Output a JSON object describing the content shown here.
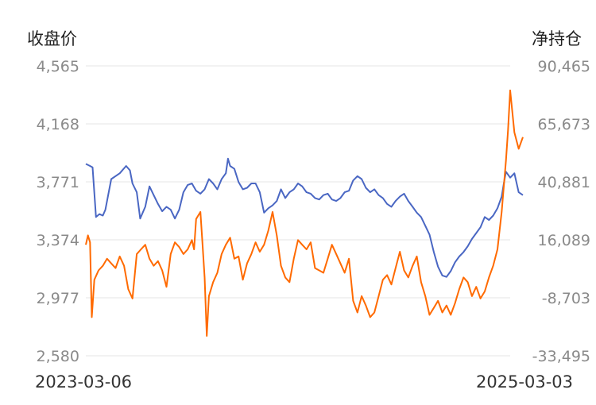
{
  "chart_data": {
    "type": "line",
    "left_axis_title": "收盘价",
    "right_axis_title": "净持仓",
    "y_left": {
      "min": 2580,
      "max": 4565,
      "ticks": [
        "4,565",
        "4,168",
        "3,771",
        "3,374",
        "2,977",
        "2,580"
      ]
    },
    "y_right": {
      "min": -33495,
      "max": 90465,
      "ticks": [
        "90,465",
        "65,673",
        "40,881",
        "16,089",
        "-8,703",
        "-33,495"
      ]
    },
    "x_range": [
      "2023-03-06",
      "2025-03-03"
    ],
    "grid": true,
    "colors": {
      "close": "#4a67c3",
      "net_position": "#ff6a00"
    },
    "series": [
      {
        "axis": "left",
        "color": "#4a67c3",
        "points": [
          [
            0,
            3894
          ],
          [
            0.01,
            3880
          ],
          [
            0.016,
            3870
          ],
          [
            0.024,
            3530
          ],
          [
            0.032,
            3550
          ],
          [
            0.04,
            3540
          ],
          [
            0.046,
            3580
          ],
          [
            0.06,
            3790
          ],
          [
            0.08,
            3830
          ],
          [
            0.095,
            3880
          ],
          [
            0.104,
            3850
          ],
          [
            0.11,
            3760
          ],
          [
            0.12,
            3700
          ],
          [
            0.128,
            3520
          ],
          [
            0.14,
            3600
          ],
          [
            0.15,
            3740
          ],
          [
            0.16,
            3680
          ],
          [
            0.17,
            3620
          ],
          [
            0.18,
            3570
          ],
          [
            0.19,
            3600
          ],
          [
            0.2,
            3580
          ],
          [
            0.21,
            3520
          ],
          [
            0.22,
            3580
          ],
          [
            0.23,
            3700
          ],
          [
            0.24,
            3750
          ],
          [
            0.25,
            3760
          ],
          [
            0.26,
            3710
          ],
          [
            0.27,
            3690
          ],
          [
            0.28,
            3720
          ],
          [
            0.29,
            3790
          ],
          [
            0.3,
            3760
          ],
          [
            0.31,
            3720
          ],
          [
            0.32,
            3790
          ],
          [
            0.33,
            3830
          ],
          [
            0.335,
            3930
          ],
          [
            0.34,
            3880
          ],
          [
            0.35,
            3860
          ],
          [
            0.36,
            3770
          ],
          [
            0.37,
            3720
          ],
          [
            0.38,
            3730
          ],
          [
            0.39,
            3760
          ],
          [
            0.4,
            3760
          ],
          [
            0.41,
            3700
          ],
          [
            0.42,
            3560
          ],
          [
            0.43,
            3590
          ],
          [
            0.44,
            3610
          ],
          [
            0.45,
            3640
          ],
          [
            0.46,
            3720
          ],
          [
            0.47,
            3660
          ],
          [
            0.48,
            3700
          ],
          [
            0.49,
            3720
          ],
          [
            0.5,
            3760
          ],
          [
            0.51,
            3740
          ],
          [
            0.52,
            3700
          ],
          [
            0.53,
            3690
          ],
          [
            0.54,
            3660
          ],
          [
            0.55,
            3650
          ],
          [
            0.56,
            3680
          ],
          [
            0.57,
            3690
          ],
          [
            0.58,
            3650
          ],
          [
            0.59,
            3640
          ],
          [
            0.6,
            3660
          ],
          [
            0.61,
            3700
          ],
          [
            0.62,
            3710
          ],
          [
            0.63,
            3780
          ],
          [
            0.64,
            3810
          ],
          [
            0.65,
            3790
          ],
          [
            0.66,
            3730
          ],
          [
            0.67,
            3700
          ],
          [
            0.68,
            3720
          ],
          [
            0.69,
            3680
          ],
          [
            0.7,
            3660
          ],
          [
            0.71,
            3620
          ],
          [
            0.72,
            3600
          ],
          [
            0.73,
            3640
          ],
          [
            0.74,
            3670
          ],
          [
            0.75,
            3690
          ],
          [
            0.76,
            3640
          ],
          [
            0.77,
            3600
          ],
          [
            0.78,
            3560
          ],
          [
            0.79,
            3530
          ],
          [
            0.8,
            3470
          ],
          [
            0.81,
            3410
          ],
          [
            0.82,
            3290
          ],
          [
            0.83,
            3190
          ],
          [
            0.84,
            3130
          ],
          [
            0.85,
            3120
          ],
          [
            0.86,
            3160
          ],
          [
            0.87,
            3220
          ],
          [
            0.88,
            3260
          ],
          [
            0.89,
            3290
          ],
          [
            0.9,
            3330
          ],
          [
            0.91,
            3380
          ],
          [
            0.92,
            3420
          ],
          [
            0.93,
            3460
          ],
          [
            0.94,
            3530
          ],
          [
            0.95,
            3510
          ],
          [
            0.96,
            3540
          ],
          [
            0.97,
            3590
          ],
          [
            0.98,
            3670
          ],
          [
            0.985,
            3760
          ],
          [
            0.99,
            3840
          ],
          [
            1,
            3800
          ],
          [
            1.01,
            3830
          ],
          [
            1.02,
            3700
          ],
          [
            1.03,
            3680
          ]
        ]
      },
      {
        "axis": "right",
        "color": "#ff6a00",
        "points": [
          [
            0,
            14000
          ],
          [
            0.005,
            18000
          ],
          [
            0.01,
            15000
          ],
          [
            0.014,
            -17000
          ],
          [
            0.02,
            -1000
          ],
          [
            0.03,
            3000
          ],
          [
            0.04,
            5000
          ],
          [
            0.05,
            8000
          ],
          [
            0.06,
            6000
          ],
          [
            0.07,
            4000
          ],
          [
            0.08,
            9000
          ],
          [
            0.09,
            5000
          ],
          [
            0.1,
            -5000
          ],
          [
            0.11,
            -9000
          ],
          [
            0.12,
            10000
          ],
          [
            0.13,
            12000
          ],
          [
            0.14,
            14000
          ],
          [
            0.15,
            8000
          ],
          [
            0.16,
            5000
          ],
          [
            0.17,
            7000
          ],
          [
            0.18,
            3000
          ],
          [
            0.19,
            -4000
          ],
          [
            0.2,
            10000
          ],
          [
            0.21,
            15000
          ],
          [
            0.22,
            13000
          ],
          [
            0.23,
            10000
          ],
          [
            0.24,
            12000
          ],
          [
            0.25,
            16000
          ],
          [
            0.255,
            12000
          ],
          [
            0.26,
            25000
          ],
          [
            0.27,
            28000
          ],
          [
            0.275,
            14000
          ],
          [
            0.28,
            0
          ],
          [
            0.285,
            -25000
          ],
          [
            0.29,
            -8000
          ],
          [
            0.3,
            -2000
          ],
          [
            0.31,
            2000
          ],
          [
            0.32,
            10000
          ],
          [
            0.33,
            14000
          ],
          [
            0.34,
            17000
          ],
          [
            0.35,
            8000
          ],
          [
            0.36,
            9000
          ],
          [
            0.37,
            -1000
          ],
          [
            0.38,
            6000
          ],
          [
            0.39,
            10000
          ],
          [
            0.4,
            15000
          ],
          [
            0.41,
            11000
          ],
          [
            0.42,
            14000
          ],
          [
            0.43,
            20000
          ],
          [
            0.44,
            28000
          ],
          [
            0.45,
            18000
          ],
          [
            0.46,
            5000
          ],
          [
            0.47,
            0
          ],
          [
            0.48,
            -2000
          ],
          [
            0.49,
            8000
          ],
          [
            0.5,
            16000
          ],
          [
            0.51,
            14000
          ],
          [
            0.52,
            12000
          ],
          [
            0.53,
            15000
          ],
          [
            0.54,
            4000
          ],
          [
            0.55,
            3000
          ],
          [
            0.56,
            2000
          ],
          [
            0.57,
            8000
          ],
          [
            0.58,
            14000
          ],
          [
            0.59,
            10000
          ],
          [
            0.6,
            6000
          ],
          [
            0.61,
            2000
          ],
          [
            0.62,
            8000
          ],
          [
            0.63,
            -10000
          ],
          [
            0.64,
            -15000
          ],
          [
            0.65,
            -8000
          ],
          [
            0.66,
            -12000
          ],
          [
            0.67,
            -17000
          ],
          [
            0.68,
            -15000
          ],
          [
            0.69,
            -8000
          ],
          [
            0.7,
            -1000
          ],
          [
            0.71,
            1000
          ],
          [
            0.72,
            -3000
          ],
          [
            0.73,
            4000
          ],
          [
            0.74,
            11000
          ],
          [
            0.75,
            3000
          ],
          [
            0.76,
            0
          ],
          [
            0.77,
            5000
          ],
          [
            0.78,
            9000
          ],
          [
            0.79,
            -2000
          ],
          [
            0.8,
            -8000
          ],
          [
            0.81,
            -16000
          ],
          [
            0.82,
            -13000
          ],
          [
            0.83,
            -10000
          ],
          [
            0.84,
            -15000
          ],
          [
            0.85,
            -12000
          ],
          [
            0.86,
            -16000
          ],
          [
            0.87,
            -11000
          ],
          [
            0.88,
            -5000
          ],
          [
            0.89,
            0
          ],
          [
            0.9,
            -2000
          ],
          [
            0.91,
            -8000
          ],
          [
            0.92,
            -4000
          ],
          [
            0.93,
            -9000
          ],
          [
            0.94,
            -6000
          ],
          [
            0.95,
            0
          ],
          [
            0.96,
            5000
          ],
          [
            0.97,
            12000
          ],
          [
            0.98,
            28000
          ],
          [
            0.99,
            50000
          ],
          [
            0.995,
            63000
          ],
          [
            1,
            80000
          ],
          [
            1.01,
            62000
          ],
          [
            1.02,
            55000
          ],
          [
            1.03,
            60000
          ]
        ]
      }
    ]
  }
}
